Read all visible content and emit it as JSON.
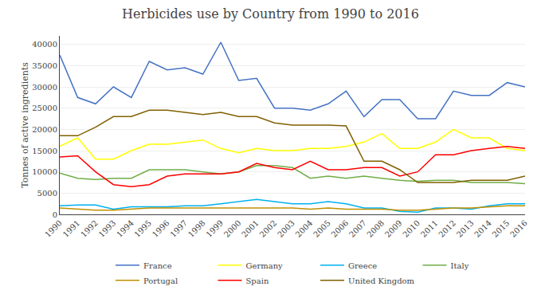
{
  "chart_data": {
    "type": "line",
    "title": "Herbicides use by Country from 1990 to 2016",
    "ylabel": "Tonnes of active ingredients",
    "x": [
      1990,
      1991,
      1992,
      1993,
      1994,
      1995,
      1996,
      1997,
      1998,
      1999,
      2000,
      2001,
      2002,
      2003,
      2004,
      2005,
      2006,
      2007,
      2008,
      2009,
      2010,
      2011,
      2012,
      2013,
      2014,
      2015,
      2016
    ],
    "series": [
      {
        "name": "France",
        "color": "#4472c4",
        "values": [
          37500,
          27500,
          26000,
          30000,
          27500,
          36000,
          34000,
          34500,
          33000,
          40500,
          31500,
          32000,
          25000,
          25000,
          24500,
          26000,
          29000,
          23000,
          27000,
          27000,
          22500,
          22500,
          29000,
          28000,
          28000,
          31000,
          30000
        ]
      },
      {
        "name": "Germany",
        "color": "#ffff00",
        "values": [
          16000,
          18000,
          13000,
          13000,
          15000,
          16500,
          16500,
          17000,
          17500,
          15500,
          14500,
          15500,
          15000,
          15000,
          15500,
          15500,
          16000,
          17000,
          19000,
          15500,
          15500,
          17000,
          20000,
          18000,
          18000,
          15500,
          15000
        ]
      },
      {
        "name": "Greece",
        "color": "#00b0f0",
        "values": [
          2000,
          2200,
          2200,
          1200,
          1800,
          1800,
          1800,
          2000,
          2000,
          2500,
          3000,
          3500,
          3000,
          2500,
          2500,
          3000,
          2500,
          1500,
          1500,
          700,
          500,
          1500,
          1500,
          1200,
          2000,
          2500,
          2500
        ]
      },
      {
        "name": "Italy",
        "color": "#70ad47",
        "values": [
          9700,
          8500,
          8200,
          8500,
          8500,
          10500,
          10500,
          10500,
          10000,
          9500,
          10000,
          11500,
          11500,
          11000,
          8500,
          9000,
          8500,
          9000,
          8500,
          8000,
          7800,
          8000,
          8000,
          7500,
          7500,
          7500,
          7200
        ]
      },
      {
        "name": "Portugal",
        "color": "#c09000",
        "values": [
          1500,
          1200,
          1000,
          1000,
          1200,
          1500,
          1500,
          1500,
          1500,
          1500,
          1500,
          1500,
          1500,
          1500,
          1200,
          1500,
          1200,
          1200,
          1200,
          1000,
          1000,
          1200,
          1500,
          1500,
          1800,
          2000,
          2000
        ]
      },
      {
        "name": "Spain",
        "color": "#ff0000",
        "values": [
          13500,
          13800,
          10000,
          7000,
          6500,
          7000,
          9000,
          9500,
          9500,
          9500,
          10000,
          12000,
          11000,
          10500,
          12500,
          10500,
          10500,
          11000,
          11000,
          9000,
          10000,
          14000,
          14000,
          15000,
          15500,
          16000,
          15500
        ]
      },
      {
        "name": "United Kingdom",
        "color": "#806000",
        "values": [
          18500,
          18500,
          20500,
          23000,
          23000,
          24500,
          24500,
          24000,
          23500,
          24000,
          23000,
          23000,
          21500,
          21000,
          21000,
          21000,
          20800,
          12500,
          12500,
          10500,
          7500,
          7500,
          7500,
          8000,
          8000,
          8000,
          9000
        ]
      }
    ],
    "xlim": [
      1990,
      2016
    ],
    "xticks": [
      1990,
      1991,
      1992,
      1993,
      1994,
      1995,
      1996,
      1997,
      1998,
      1999,
      2000,
      2001,
      2002,
      2003,
      2004,
      2005,
      2006,
      2007,
      2008,
      2009,
      2010,
      2011,
      2012,
      2013,
      2014,
      2015,
      2016
    ],
    "ylim": [
      0,
      42000
    ],
    "yticks": [
      0,
      5000,
      10000,
      15000,
      20000,
      25000,
      30000,
      35000,
      40000
    ],
    "grid": true,
    "legend": "bottom"
  }
}
